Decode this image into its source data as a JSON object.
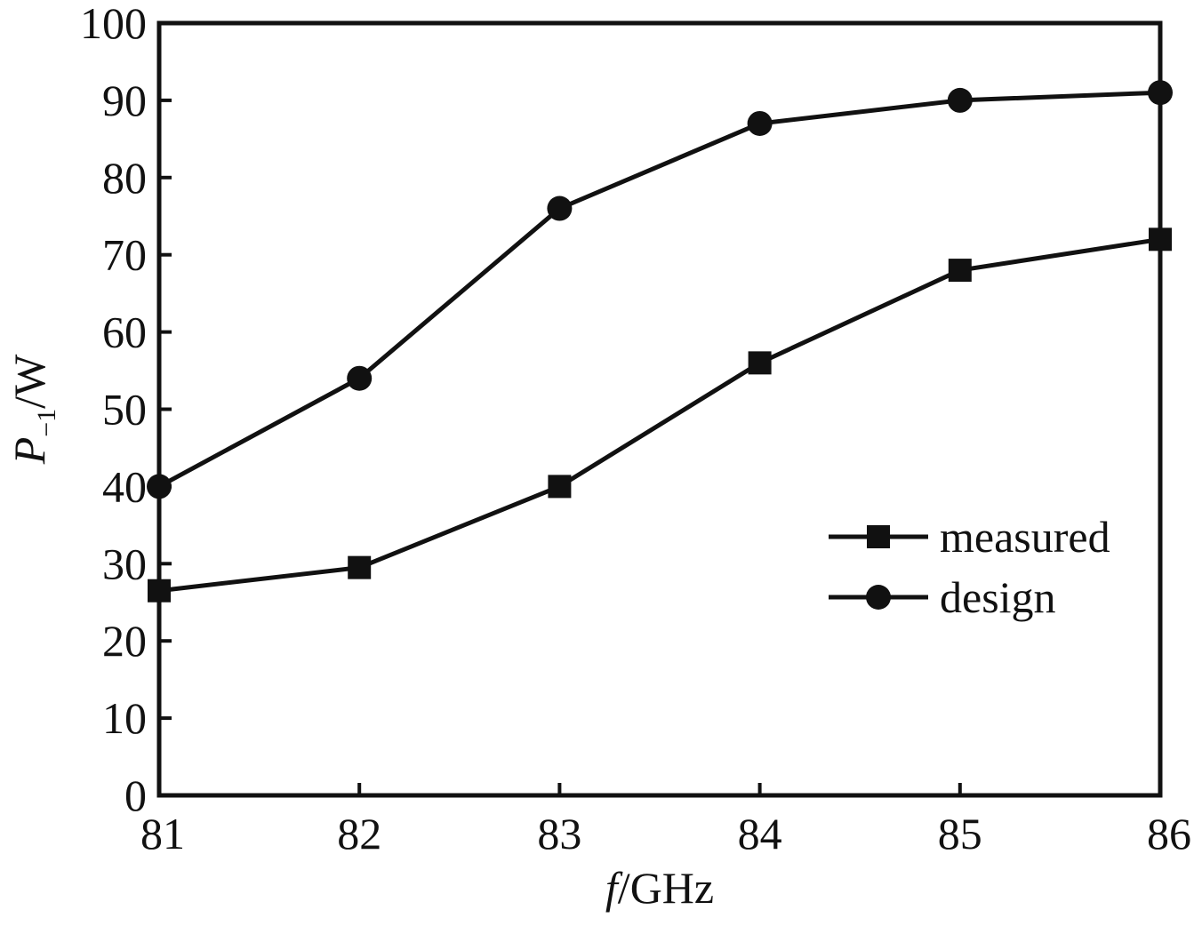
{
  "chart_data": {
    "type": "line",
    "xlabel": {
      "italic": "f",
      "rest": "/GHz"
    },
    "ylabel": {
      "italic": "P",
      "subscript": "−1",
      "rest": "/W"
    },
    "x": [
      81,
      82,
      83,
      84,
      85,
      86
    ],
    "xlim": [
      81,
      86
    ],
    "ylim": [
      0,
      100
    ],
    "xticks": [
      "81",
      "82",
      "83",
      "84",
      "85",
      "86"
    ],
    "yticks": [
      "0",
      "10",
      "20",
      "30",
      "40",
      "50",
      "60",
      "70",
      "80",
      "90",
      "100"
    ],
    "grid": false,
    "legend_position": "lower-right",
    "series": [
      {
        "name": "measured",
        "marker": "square",
        "values": [
          26.5,
          29.5,
          40,
          56,
          68,
          72
        ]
      },
      {
        "name": "design",
        "marker": "circle",
        "values": [
          40,
          54,
          76,
          87,
          90,
          91
        ]
      }
    ],
    "colors": {
      "line": "#111111",
      "background": "#ffffff"
    }
  }
}
